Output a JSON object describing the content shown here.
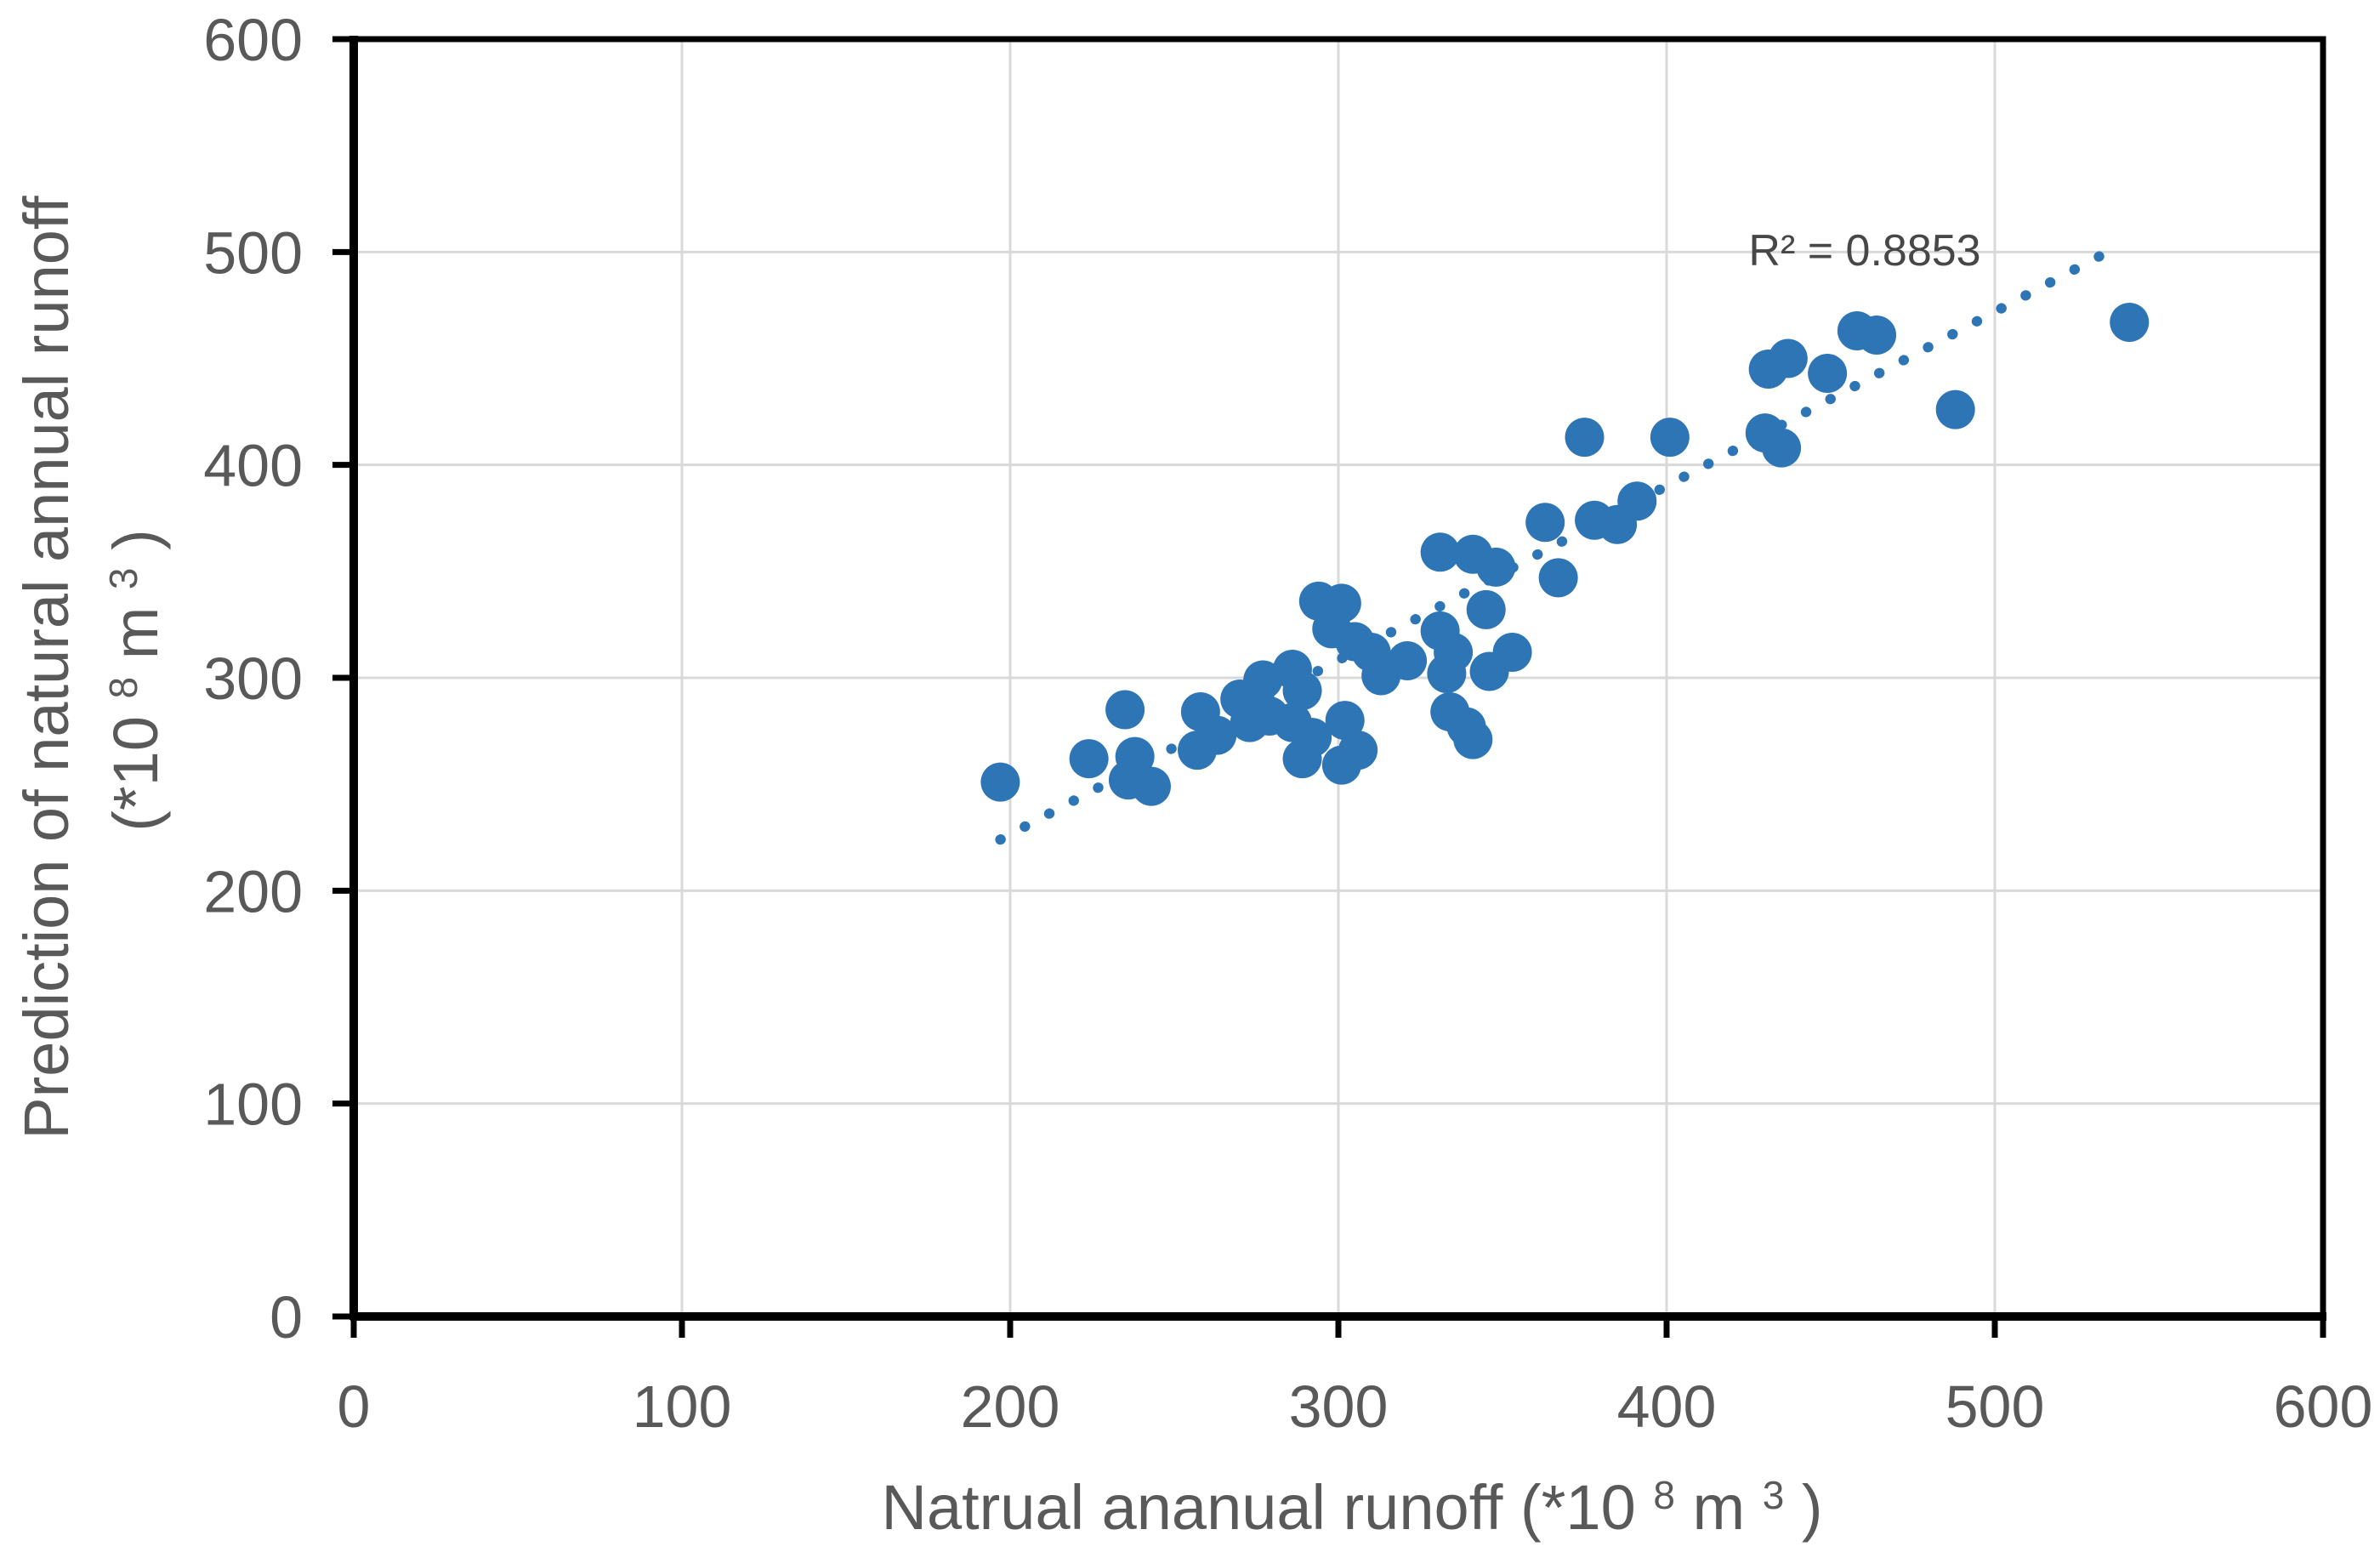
{
  "figure": {
    "background_color": "#ffffff"
  },
  "annotation": {
    "text": "R² = 0.8853"
  },
  "x_axis": {
    "tick_labels": [
      "0",
      "100",
      "200",
      "300",
      "400",
      "500",
      "600"
    ],
    "title_main": "Natrual ananual runoff (*10",
    "title_sup1": "8",
    "title_mid": " m",
    "title_sup2": "3",
    "title_end": ")"
  },
  "y_axis": {
    "tick_labels": [
      "0",
      "100",
      "200",
      "300",
      "400",
      "500",
      "600"
    ],
    "title_line1": "Prediction of natural annual runoff",
    "unit_main": "(*10",
    "unit_sup1": "8",
    "unit_mid": " m",
    "unit_sup2": "3",
    "unit_end": ")"
  },
  "chart_data": {
    "type": "scatter",
    "title": "",
    "xlabel": "Natrual ananual runoff (*10^8 m^3)",
    "ylabel": "Prediction of natural annual runoff (*10^8 m^3)",
    "xlim": [
      0,
      600
    ],
    "ylim": [
      0,
      600
    ],
    "x_ticks": [
      0,
      100,
      200,
      300,
      400,
      500,
      600
    ],
    "y_ticks": [
      0,
      100,
      200,
      300,
      400,
      500,
      600
    ],
    "grid": true,
    "legend_position": "none",
    "marker_color": "#2E75B6",
    "grid_color": "#D9D9D9",
    "axis_color": "#000000",
    "tick_text_color": "#595959",
    "annotation": {
      "text": "R² = 0.8853",
      "r_squared": 0.8853
    },
    "trendline": {
      "style": "dotted",
      "color": "#2E75B6",
      "x_start": 197,
      "y_start": 224,
      "x_end": 538,
      "y_end": 503
    },
    "points": [
      [
        197,
        251
      ],
      [
        224,
        262
      ],
      [
        235,
        285
      ],
      [
        238,
        263
      ],
      [
        236,
        252
      ],
      [
        243,
        249
      ],
      [
        258,
        284
      ],
      [
        257,
        266
      ],
      [
        263,
        273
      ],
      [
        270,
        290
      ],
      [
        273,
        279
      ],
      [
        277,
        299
      ],
      [
        279,
        282
      ],
      [
        286,
        304
      ],
      [
        289,
        294
      ],
      [
        286,
        279
      ],
      [
        289,
        262
      ],
      [
        292,
        272
      ],
      [
        301,
        259
      ],
      [
        302,
        280
      ],
      [
        306,
        266
      ],
      [
        294,
        336
      ],
      [
        301,
        335
      ],
      [
        298,
        323
      ],
      [
        305,
        317
      ],
      [
        310,
        312
      ],
      [
        313,
        301
      ],
      [
        321,
        308
      ],
      [
        331,
        322
      ],
      [
        335,
        312
      ],
      [
        333,
        302
      ],
      [
        345,
        332
      ],
      [
        346,
        303
      ],
      [
        353,
        312
      ],
      [
        331,
        359
      ],
      [
        341,
        358
      ],
      [
        348,
        352
      ],
      [
        367,
        347
      ],
      [
        334,
        284
      ],
      [
        339,
        277
      ],
      [
        341,
        271
      ],
      [
        363,
        373
      ],
      [
        378,
        374
      ],
      [
        385,
        372
      ],
      [
        391,
        383
      ],
      [
        375,
        413
      ],
      [
        401,
        413
      ],
      [
        430,
        415
      ],
      [
        435,
        408
      ],
      [
        431,
        445
      ],
      [
        437,
        450
      ],
      [
        449,
        443
      ],
      [
        458,
        463
      ],
      [
        464,
        461
      ],
      [
        488,
        426
      ],
      [
        541,
        467
      ]
    ]
  }
}
